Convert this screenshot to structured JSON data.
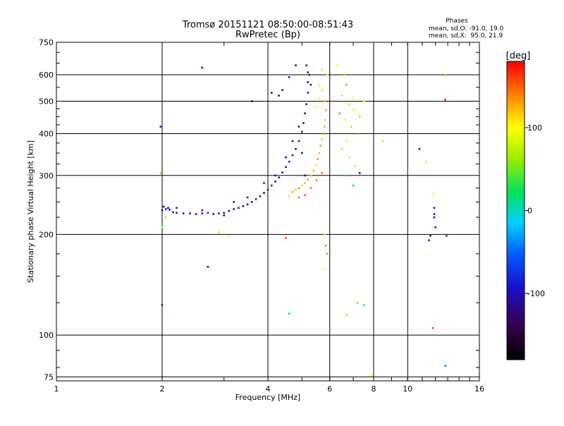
{
  "chart_data": {
    "type": "scatter",
    "title": "Tromsø 20151121 08:50:00-08:51:43",
    "subtitle": "RwPretec (Bp)",
    "xlabel": "Frequency [MHz]",
    "ylabel": "Stationary phase Virtual Height [km]",
    "x_scale": "log2",
    "y_scale": "log",
    "xlim": [
      1,
      16
    ],
    "ylim": [
      73,
      750
    ],
    "x_ticks": [
      1,
      2,
      4,
      6,
      8,
      10,
      16
    ],
    "x_tick_labels": [
      "1",
      "2",
      "4",
      "6",
      "8",
      "10",
      "16"
    ],
    "y_ticks": [
      75,
      100,
      200,
      300,
      400,
      500,
      600,
      750
    ],
    "y_tick_labels": [
      "75",
      "100",
      "200",
      "300",
      "400",
      "500",
      "600",
      "750"
    ],
    "stats": {
      "heading": "Phases",
      "line_o": "mean, sd,O: -91.0, 19.0",
      "line_x": "mean, sd,X:  95.0, 21.9"
    },
    "colorbar": {
      "label": "[deg]",
      "range": [
        -180,
        180
      ],
      "ticks": [
        100,
        0,
        -100
      ],
      "tick_labels": [
        "100",
        "0",
        "-100"
      ]
    },
    "series": [
      {
        "name": "O-mode trace (blue)",
        "points": [
          [
            2.0,
            236,
            -100
          ],
          [
            2.02,
            242,
            -98
          ],
          [
            2.05,
            238,
            -105
          ],
          [
            2.08,
            240,
            -95
          ],
          [
            2.1,
            237,
            -110
          ],
          [
            2.15,
            233,
            -100
          ],
          [
            2.2,
            232,
            -92
          ],
          [
            2.3,
            231,
            -102
          ],
          [
            2.4,
            231,
            -96
          ],
          [
            2.5,
            230,
            -104
          ],
          [
            2.6,
            231,
            -100
          ],
          [
            2.7,
            232,
            -90
          ],
          [
            2.8,
            230,
            -108
          ],
          [
            2.9,
            231,
            -98
          ],
          [
            3.0,
            232,
            -112
          ],
          [
            3.1,
            235,
            -102
          ],
          [
            3.2,
            238,
            -95
          ],
          [
            3.3,
            240,
            -118
          ],
          [
            3.4,
            243,
            -100
          ],
          [
            3.5,
            246,
            -92
          ],
          [
            3.6,
            250,
            -108
          ],
          [
            3.7,
            255,
            -97
          ],
          [
            3.8,
            260,
            -104
          ],
          [
            3.9,
            266,
            -112
          ],
          [
            4.0,
            272,
            -100
          ],
          [
            4.1,
            280,
            -95
          ],
          [
            4.2,
            288,
            -106
          ],
          [
            4.3,
            296,
            -99
          ],
          [
            4.4,
            306,
            -110
          ],
          [
            4.5,
            318,
            -101
          ],
          [
            4.6,
            330,
            -94
          ],
          [
            4.7,
            345,
            -103
          ],
          [
            4.8,
            360,
            -97
          ],
          [
            4.9,
            380,
            -108
          ],
          [
            5.0,
            405,
            -100
          ],
          [
            5.05,
            430,
            -95
          ],
          [
            5.1,
            460,
            -104
          ],
          [
            5.15,
            490,
            -99
          ],
          [
            5.2,
            530,
            -107
          ],
          [
            5.2,
            570,
            -102
          ],
          [
            5.2,
            610,
            -96
          ],
          [
            5.15,
            640,
            -110
          ],
          [
            5.25,
            600,
            -98
          ],
          [
            5.3,
            560,
            -104
          ],
          [
            3.2,
            250,
            -120
          ],
          [
            3.5,
            258,
            -115
          ],
          [
            3.9,
            285,
            -110
          ],
          [
            4.2,
            300,
            -118
          ],
          [
            4.5,
            340,
            -112
          ],
          [
            4.7,
            380,
            -116
          ],
          [
            4.9,
            420,
            -108
          ],
          [
            3.0,
            228,
            -125
          ],
          [
            2.6,
            236,
            -88
          ],
          [
            2.2,
            240,
            -85
          ],
          [
            4.3,
            520,
            -100
          ],
          [
            4.1,
            530,
            -102
          ],
          [
            4.4,
            540,
            -98
          ],
          [
            3.6,
            500,
            -110
          ],
          [
            4.6,
            590,
            -104
          ],
          [
            4.8,
            640,
            -100
          ],
          [
            2.6,
            630,
            -105
          ],
          [
            1.98,
            420,
            -95
          ],
          [
            5.1,
            300,
            -100
          ],
          [
            5.0,
            350,
            -98
          ]
        ]
      },
      {
        "name": "X-mode trace (yellow/orange)",
        "points": [
          [
            4.6,
            260,
            110
          ],
          [
            4.7,
            268,
            130
          ],
          [
            4.8,
            272,
            120
          ],
          [
            4.9,
            275,
            140
          ],
          [
            5.0,
            280,
            115
          ],
          [
            5.1,
            285,
            125
          ],
          [
            5.2,
            292,
            135
          ],
          [
            5.3,
            300,
            118
          ],
          [
            5.4,
            310,
            128
          ],
          [
            5.5,
            322,
            110
          ],
          [
            5.55,
            336,
            138
          ],
          [
            5.6,
            350,
            122
          ],
          [
            5.65,
            368,
            132
          ],
          [
            5.7,
            385,
            115
          ],
          [
            5.75,
            400,
            140
          ],
          [
            5.8,
            420,
            125
          ],
          [
            5.82,
            440,
            118
          ],
          [
            5.85,
            470,
            130
          ],
          [
            5.8,
            500,
            120
          ],
          [
            5.7,
            540,
            112
          ],
          [
            5.6,
            510,
            105
          ],
          [
            5.5,
            480,
            100
          ],
          [
            5.6,
            560,
            90
          ],
          [
            5.9,
            600,
            95
          ],
          [
            5.7,
            620,
            85
          ],
          [
            4.9,
            258,
            150
          ],
          [
            5.1,
            262,
            155
          ],
          [
            5.3,
            275,
            145
          ],
          [
            5.5,
            290,
            150
          ],
          [
            5.7,
            305,
            145
          ]
        ]
      },
      {
        "name": "scattered returns",
        "points": [
          [
            2.0,
            213,
            10
          ],
          [
            2.0,
            210,
            90
          ],
          [
            2.0,
            123,
            -90
          ],
          [
            1.98,
            305,
            60
          ],
          [
            2.05,
            225,
            70
          ],
          [
            2.7,
            160,
            -110
          ],
          [
            2.9,
            203,
            110
          ],
          [
            3.1,
            198,
            100
          ],
          [
            4.6,
            116,
            20
          ],
          [
            4.5,
            195,
            160
          ],
          [
            5.8,
            200,
            105
          ],
          [
            5.85,
            185,
            30
          ],
          [
            5.9,
            175,
            40
          ],
          [
            5.8,
            158,
            95
          ],
          [
            6.3,
            640,
            90
          ],
          [
            6.6,
            600,
            60
          ],
          [
            6.7,
            560,
            40
          ],
          [
            6.5,
            520,
            80
          ],
          [
            6.8,
            490,
            110
          ],
          [
            7.0,
            470,
            100
          ],
          [
            6.4,
            460,
            30
          ],
          [
            6.6,
            440,
            90
          ],
          [
            6.9,
            420,
            120
          ],
          [
            7.2,
            400,
            140
          ],
          [
            6.7,
            380,
            100
          ],
          [
            6.5,
            360,
            80
          ],
          [
            6.8,
            340,
            90
          ],
          [
            7.1,
            320,
            110
          ],
          [
            6.7,
            300,
            30
          ],
          [
            7.3,
            305,
            -120
          ],
          [
            7.0,
            280,
            20
          ],
          [
            6.7,
            115,
            70
          ],
          [
            7.2,
            125,
            50
          ],
          [
            7.5,
            123,
            30
          ],
          [
            7.5,
            500,
            100
          ],
          [
            7.3,
            450,
            120
          ],
          [
            7.0,
            510,
            95
          ],
          [
            8.5,
            380,
            110
          ],
          [
            7.9,
            76,
            100
          ],
          [
            10.8,
            360,
            -100
          ],
          [
            11.3,
            330,
            110
          ],
          [
            11.8,
            265,
            100
          ],
          [
            11.9,
            240,
            -105
          ],
          [
            11.9,
            225,
            -100
          ],
          [
            12.0,
            210,
            -110
          ],
          [
            11.6,
            198,
            -100
          ],
          [
            11.5,
            192,
            -85
          ],
          [
            11.8,
            105,
            160
          ],
          [
            12.8,
            600,
            50
          ],
          [
            12.8,
            505,
            170
          ],
          [
            12.9,
            198,
            -60
          ],
          [
            12.8,
            81,
            -40
          ],
          [
            11.9,
            230,
            -95
          ]
        ]
      }
    ]
  }
}
